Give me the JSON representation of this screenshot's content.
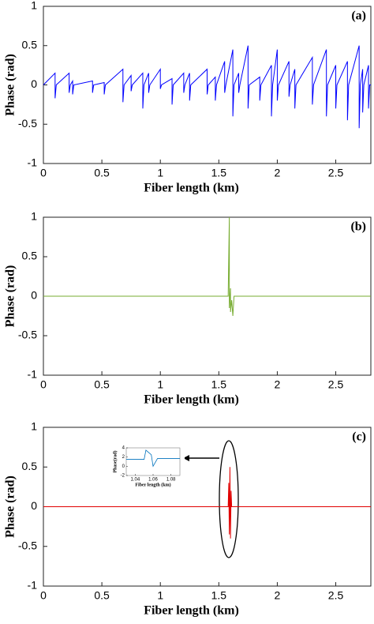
{
  "chart_data": [
    {
      "type": "line",
      "label": "(a)",
      "xlabel": "Fiber length (km)",
      "ylabel": "Phase (rad)",
      "color": "#0000ff",
      "xlim": [
        0,
        2.8
      ],
      "xticks": [
        0,
        0.5,
        1,
        1.5,
        2,
        2.5
      ],
      "ylim": [
        -1,
        1
      ],
      "yticks": [
        -1,
        -0.5,
        0,
        0.5,
        1
      ],
      "x": [
        0,
        0.1,
        0.1,
        0.11,
        0.22,
        0.22,
        0.23,
        0.25,
        0.25,
        0.26,
        0.42,
        0.42,
        0.43,
        0.52,
        0.52,
        0.53,
        0.68,
        0.68,
        0.69,
        0.75,
        0.75,
        0.76,
        0.85,
        0.85,
        0.86,
        0.9,
        0.9,
        0.91,
        1.0,
        1.0,
        1.01,
        1.1,
        1.1,
        1.11,
        1.2,
        1.2,
        1.21,
        1.25,
        1.25,
        1.26,
        1.4,
        1.4,
        1.41,
        1.47,
        1.47,
        1.48,
        1.55,
        1.55,
        1.56,
        1.62,
        1.62,
        1.63,
        1.67,
        1.67,
        1.68,
        1.75,
        1.75,
        1.76,
        1.85,
        1.85,
        1.86,
        1.95,
        1.95,
        1.96,
        2.0,
        2.0,
        2.01,
        2.1,
        2.1,
        2.11,
        2.15,
        2.15,
        2.16,
        2.3,
        2.3,
        2.31,
        2.42,
        2.42,
        2.43,
        2.5,
        2.5,
        2.51,
        2.6,
        2.6,
        2.61,
        2.7,
        2.7,
        2.71,
        2.73,
        2.73,
        2.74,
        2.78,
        2.78,
        2.79,
        2.8
      ],
      "values": [
        0,
        0.15,
        -0.17,
        0,
        0.15,
        -0.1,
        0,
        0.05,
        -0.12,
        0,
        0.05,
        -0.1,
        0,
        0.03,
        -0.12,
        0,
        0.2,
        -0.22,
        0,
        0.12,
        -0.08,
        0,
        0.15,
        -0.3,
        0,
        0.15,
        -0.1,
        0,
        0.2,
        -0.05,
        0,
        0.08,
        -0.25,
        0,
        0.15,
        -0.1,
        0,
        0.15,
        -0.2,
        0,
        0.2,
        -0.12,
        0,
        0.1,
        -0.2,
        0,
        0.3,
        -0.1,
        0,
        0.45,
        -0.4,
        0,
        0.15,
        -0.1,
        0,
        0.5,
        -0.3,
        0,
        0.1,
        -0.2,
        0,
        0.25,
        -0.4,
        0,
        0.45,
        -0.2,
        0,
        0.3,
        -0.15,
        0,
        0.2,
        -0.3,
        0,
        0.35,
        -0.25,
        0,
        0.45,
        -0.4,
        0,
        0.25,
        -0.3,
        0,
        0.3,
        -0.45,
        0,
        0.5,
        -0.55,
        0,
        0.2,
        -0.35,
        0,
        0.25,
        -0.3,
        0,
        0
      ]
    },
    {
      "type": "line",
      "label": "(b)",
      "xlabel": "Fiber length (km)",
      "ylabel": "Phase (rad)",
      "color": "#77ac30",
      "xlim": [
        0,
        2.8
      ],
      "xticks": [
        0,
        0.5,
        1,
        1.5,
        2,
        2.5
      ],
      "ylim": [
        -1,
        1
      ],
      "yticks": [
        -1,
        -0.5,
        0,
        0.5,
        1
      ],
      "x": [
        0,
        1.58,
        1.59,
        1.59,
        1.6,
        1.6,
        1.61,
        1.62,
        1.63,
        2.8
      ],
      "values": [
        0,
        0,
        1.0,
        -0.15,
        0.1,
        -0.2,
        -0.05,
        -0.25,
        0,
        0
      ]
    },
    {
      "type": "line",
      "label": "(c)",
      "xlabel": "Fiber length (km)",
      "ylabel": "Phase (rad)",
      "color": "#e00000",
      "xlim": [
        0,
        2.8
      ],
      "xticks": [
        0,
        0.5,
        1,
        1.5,
        2,
        2.5
      ],
      "ylim": [
        -1,
        1
      ],
      "yticks": [
        -1,
        -0.5,
        0,
        0.5,
        1
      ],
      "x": [
        0,
        1.58,
        1.585,
        1.59,
        1.595,
        1.6,
        1.605,
        1.61,
        2.8
      ],
      "values": [
        0,
        0,
        0.3,
        -0.35,
        0.5,
        -0.4,
        0.2,
        0,
        0
      ]
    },
    {
      "type": "line",
      "xlabel": "Fiber length (km)",
      "ylabel": "Phase(rad)",
      "color": "#0072bd",
      "xlim": [
        1.03,
        1.09
      ],
      "xticks": [
        1.04,
        1.06,
        1.08
      ],
      "ylim": [
        -2,
        4
      ],
      "yticks": [
        -2,
        0,
        2,
        4
      ],
      "x": [
        1.03,
        1.05,
        1.052,
        1.058,
        1.06,
        1.065,
        1.09
      ],
      "values": [
        1.5,
        1.5,
        3.5,
        2.5,
        0,
        1.7,
        1.7
      ]
    }
  ]
}
